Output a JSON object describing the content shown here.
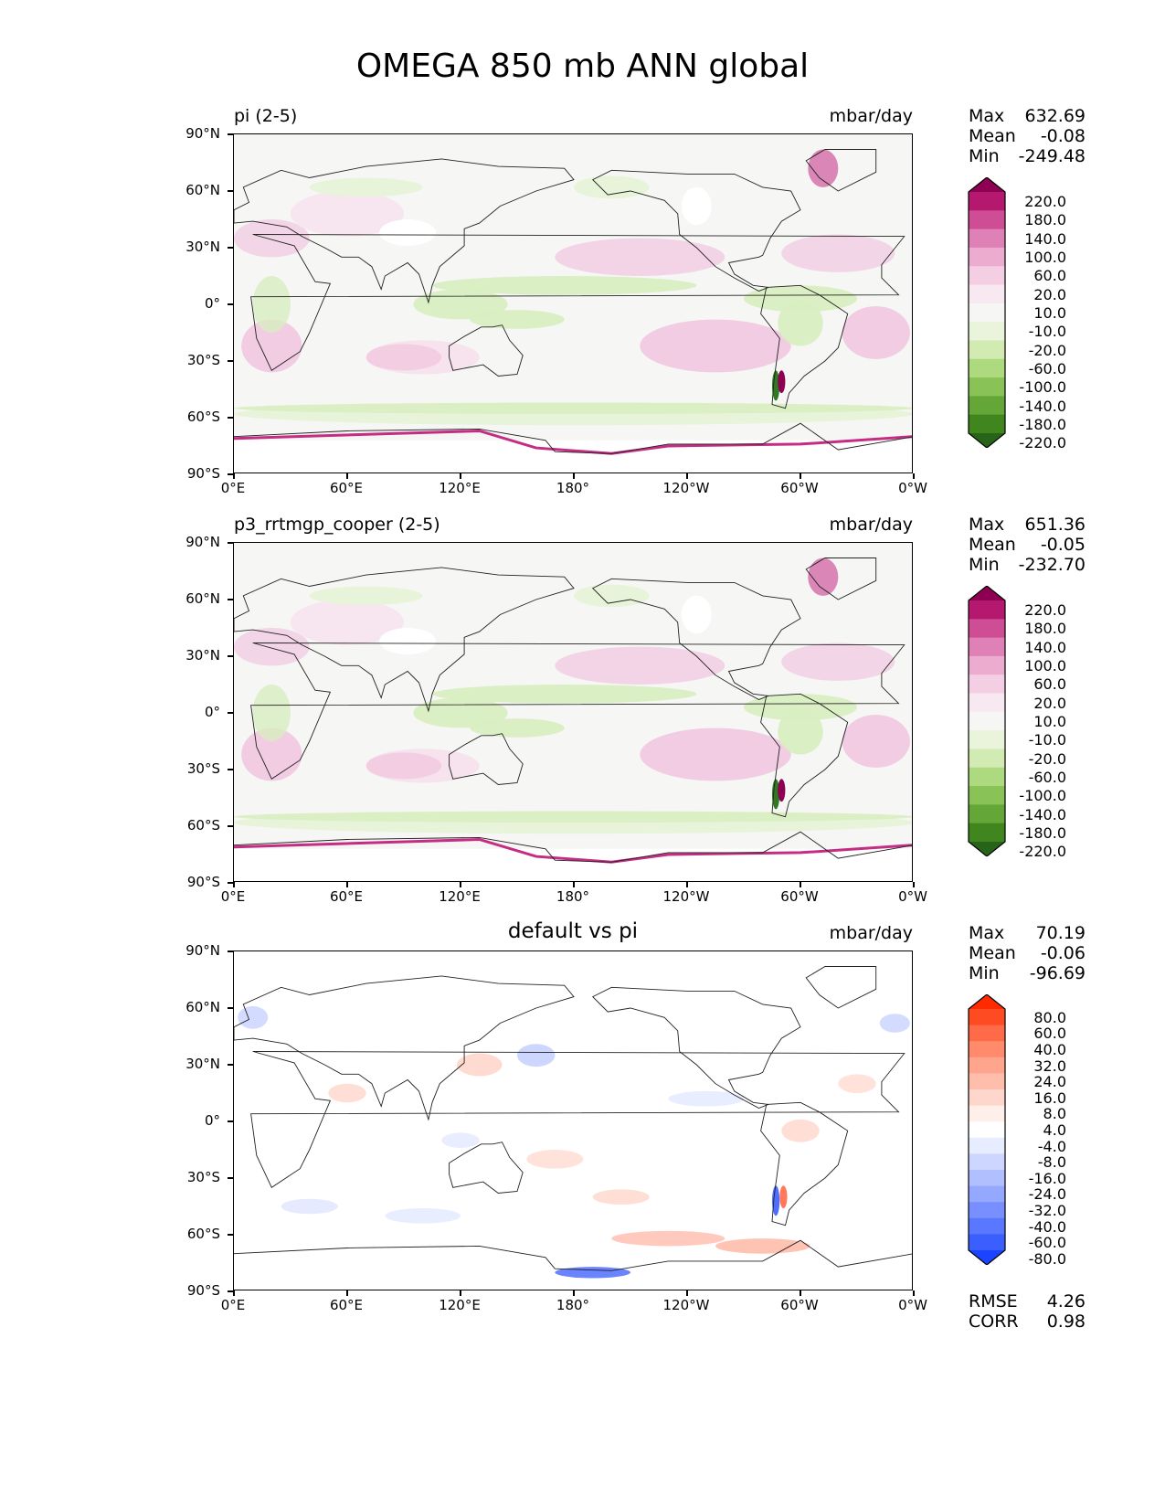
{
  "figure": {
    "title": "OMEGA 850 mb ANN global"
  },
  "axes": {
    "y_ticks": [
      "90°N",
      "60°N",
      "30°N",
      "0°",
      "30°S",
      "60°S",
      "90°S"
    ],
    "x_ticks": [
      "0°E",
      "60°E",
      "120°E",
      "180°",
      "120°W",
      "60°W",
      "0°W"
    ]
  },
  "panels": [
    {
      "left_label": "pi (2-5)",
      "center_label": "",
      "units": "mbar/day",
      "stats": {
        "max_label": "Max",
        "max": "632.69",
        "mean_label": "Mean",
        "mean": "-0.08",
        "min_label": "Min",
        "min": "-249.48"
      },
      "colorbar": {
        "labels": [
          "220.0",
          "180.0",
          "140.0",
          "100.0",
          "60.0",
          "20.0",
          "10.0",
          "-10.0",
          "-20.0",
          "-60.0",
          "-100.0",
          "-140.0",
          "-180.0",
          "-220.0"
        ],
        "colors": [
          "#8e0152",
          "#b4196f",
          "#cf4d94",
          "#df80b6",
          "#ecacd0",
          "#f4cfe4",
          "#f8e8f1",
          "#f6f6f5",
          "#e9f4da",
          "#d2ebb3",
          "#add97f",
          "#89c256",
          "#64a638",
          "#41851f",
          "#276419"
        ]
      }
    },
    {
      "left_label": "p3_rrtmgp_cooper (2-5)",
      "center_label": "",
      "units": "mbar/day",
      "stats": {
        "max_label": "Max",
        "max": "651.36",
        "mean_label": "Mean",
        "mean": "-0.05",
        "min_label": "Min",
        "min": "-232.70"
      },
      "colorbar": {
        "labels": [
          "220.0",
          "180.0",
          "140.0",
          "100.0",
          "60.0",
          "20.0",
          "10.0",
          "-10.0",
          "-20.0",
          "-60.0",
          "-100.0",
          "-140.0",
          "-180.0",
          "-220.0"
        ],
        "colors": [
          "#8e0152",
          "#b4196f",
          "#cf4d94",
          "#df80b6",
          "#ecacd0",
          "#f4cfe4",
          "#f8e8f1",
          "#f6f6f5",
          "#e9f4da",
          "#d2ebb3",
          "#add97f",
          "#89c256",
          "#64a638",
          "#41851f",
          "#276419"
        ]
      }
    },
    {
      "left_label": "",
      "center_label": "default vs pi",
      "units": "mbar/day",
      "stats": {
        "max_label": "Max",
        "max": "70.19",
        "mean_label": "Mean",
        "mean": "-0.06",
        "min_label": "Min",
        "min": "-96.69",
        "rmse_label": "RMSE",
        "rmse": "4.26",
        "corr_label": "CORR",
        "corr": "0.98"
      },
      "colorbar": {
        "labels": [
          "80.0",
          "60.0",
          "40.0",
          "32.0",
          "24.0",
          "16.0",
          "8.0",
          "4.0",
          "-4.0",
          "-8.0",
          "-16.0",
          "-24.0",
          "-32.0",
          "-40.0",
          "-60.0",
          "-80.0"
        ],
        "colors": [
          "#ff2a00",
          "#ff4b22",
          "#ff6a48",
          "#ff8a6c",
          "#ffa48d",
          "#ffbdac",
          "#ffd6cb",
          "#ffefea",
          "#ffffff",
          "#e8ecff",
          "#cdd6ff",
          "#b1bfff",
          "#95a8ff",
          "#7890ff",
          "#5a77ff",
          "#3b5eff",
          "#1a44ff"
        ]
      }
    }
  ],
  "chart_data": [
    {
      "type": "heatmap",
      "title": "pi (2-5)",
      "variable": "OMEGA 850 mb ANN global",
      "units": "mbar/day",
      "xlim": [
        0,
        360
      ],
      "ylim": [
        -90,
        90
      ],
      "max": 632.69,
      "mean": -0.08,
      "min": -249.48
    },
    {
      "type": "heatmap",
      "title": "p3_rrtmgp_cooper (2-5)",
      "variable": "OMEGA 850 mb ANN global",
      "units": "mbar/day",
      "xlim": [
        0,
        360
      ],
      "ylim": [
        -90,
        90
      ],
      "max": 651.36,
      "mean": -0.05,
      "min": -232.7
    },
    {
      "type": "heatmap",
      "title": "default vs pi",
      "variable": "OMEGA 850 mb ANN global",
      "units": "mbar/day",
      "xlim": [
        0,
        360
      ],
      "ylim": [
        -90,
        90
      ],
      "max": 70.19,
      "mean": -0.06,
      "min": -96.69,
      "rmse": 4.26,
      "corr": 0.98
    }
  ]
}
